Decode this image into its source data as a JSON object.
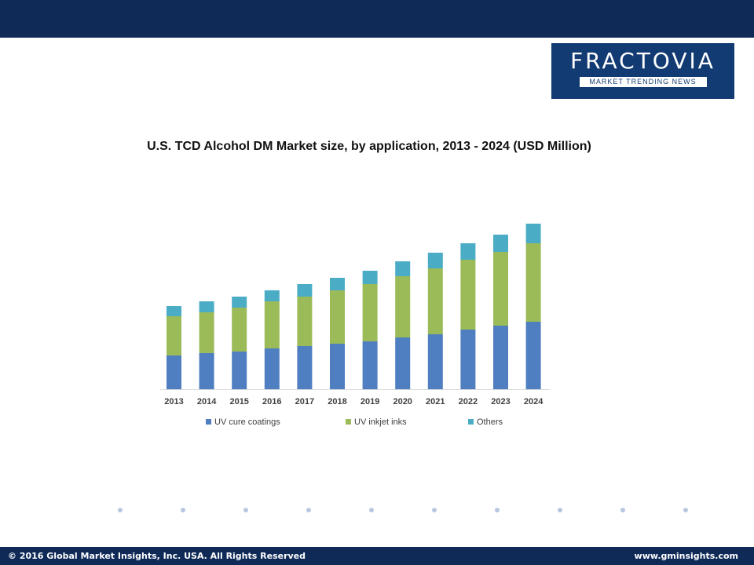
{
  "logo": {
    "name": "FRACTOVIA",
    "tagline": "MARKET TRENDING NEWS"
  },
  "footer": {
    "copyright": "© 2016 Global Market Insights, Inc. USA.  All Rights Reserved",
    "website": "www.gminsights.com"
  },
  "colors": {
    "header": "#0f2a57",
    "logo_bg": "#123a73"
  },
  "chart_data": {
    "type": "bar",
    "stacked": true,
    "title": "U.S. TCD Alcohol DM Market size, by application, 2013 - 2024 (USD Million)",
    "categories": [
      "2013",
      "2014",
      "2015",
      "2016",
      "2017",
      "2018",
      "2019",
      "2020",
      "2021",
      "2022",
      "2023",
      "2024"
    ],
    "series": [
      {
        "name": "UV cure coatings",
        "color": "#4f7fc1",
        "values": [
          43,
          46,
          48,
          52,
          55,
          58,
          61,
          66,
          70,
          76,
          81,
          86
        ]
      },
      {
        "name": "UV inkjet inks",
        "color": "#9bbb59",
        "values": [
          50,
          52,
          56,
          60,
          63,
          68,
          73,
          78,
          84,
          89,
          94,
          100
        ]
      },
      {
        "name": "Others",
        "color": "#4bacc6",
        "values": [
          13,
          14,
          14,
          14,
          16,
          16,
          17,
          19,
          20,
          21,
          22,
          25
        ]
      }
    ],
    "legend_position": "bottom",
    "grid": false,
    "axis_labels_visible": false
  }
}
